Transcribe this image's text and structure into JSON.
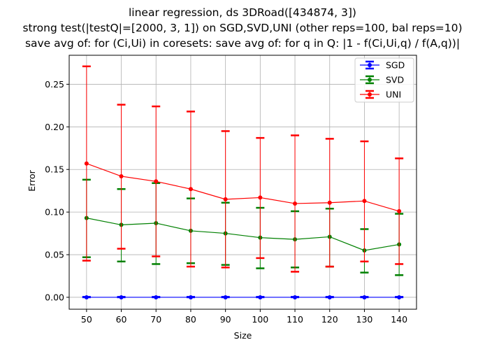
{
  "chart_data": {
    "type": "line",
    "title_lines": [
      "linear regression, ds 3DRoad([434874, 3])",
      "strong test(|testQ|=[2000, 3, 1]) on SGD,SVD,UNI (other reps=100, bal reps=10)",
      "save avg of: for (Ci,Ui) in coresets: save avg of: for q in Q: |1 - f(Ci,Ui,q) / f(A,q))|"
    ],
    "xlabel": "Size",
    "ylabel": "Error",
    "x": [
      50,
      60,
      70,
      80,
      90,
      100,
      110,
      120,
      130,
      140
    ],
    "x_ticks": [
      "50",
      "60",
      "70",
      "80",
      "90",
      "100",
      "110",
      "120",
      "130",
      "140"
    ],
    "y_ticks": [
      "0.00",
      "0.05",
      "0.10",
      "0.15",
      "0.20",
      "0.25"
    ],
    "y_tick_values": [
      0,
      0.05,
      0.1,
      0.15,
      0.2,
      0.25
    ],
    "xlim": [
      45,
      145
    ],
    "ylim": [
      -0.014,
      0.284
    ],
    "grid": true,
    "legend_position": "top-right",
    "series": [
      {
        "name": "SGD",
        "color": "#0000ff",
        "values": [
          0.0,
          0.0,
          0.0,
          0.0,
          0.0,
          0.0,
          0.0,
          0.0,
          0.0,
          0.0
        ],
        "err_low": [
          0.0,
          0.0,
          0.0,
          0.0,
          0.0,
          0.0,
          0.0,
          0.0,
          0.0,
          0.0
        ],
        "err_high": [
          0.0005,
          0.0005,
          0.0005,
          0.0005,
          0.0005,
          0.0005,
          0.0005,
          0.0005,
          0.0005,
          0.0005
        ]
      },
      {
        "name": "SVD",
        "color": "#008000",
        "values": [
          0.093,
          0.085,
          0.087,
          0.078,
          0.075,
          0.07,
          0.068,
          0.071,
          0.055,
          0.062
        ],
        "err_low": [
          0.047,
          0.042,
          0.039,
          0.04,
          0.038,
          0.034,
          0.035,
          0.036,
          0.029,
          0.026
        ],
        "err_high": [
          0.138,
          0.127,
          0.134,
          0.116,
          0.111,
          0.105,
          0.101,
          0.104,
          0.08,
          0.098
        ]
      },
      {
        "name": "UNI",
        "color": "#ff0000",
        "values": [
          0.157,
          0.142,
          0.136,
          0.127,
          0.115,
          0.117,
          0.11,
          0.111,
          0.113,
          0.101
        ],
        "err_low": [
          0.043,
          0.057,
          0.048,
          0.036,
          0.035,
          0.046,
          0.03,
          0.036,
          0.042,
          0.039
        ],
        "err_high": [
          0.271,
          0.226,
          0.224,
          0.218,
          0.195,
          0.187,
          0.19,
          0.186,
          0.183,
          0.163
        ]
      }
    ]
  }
}
